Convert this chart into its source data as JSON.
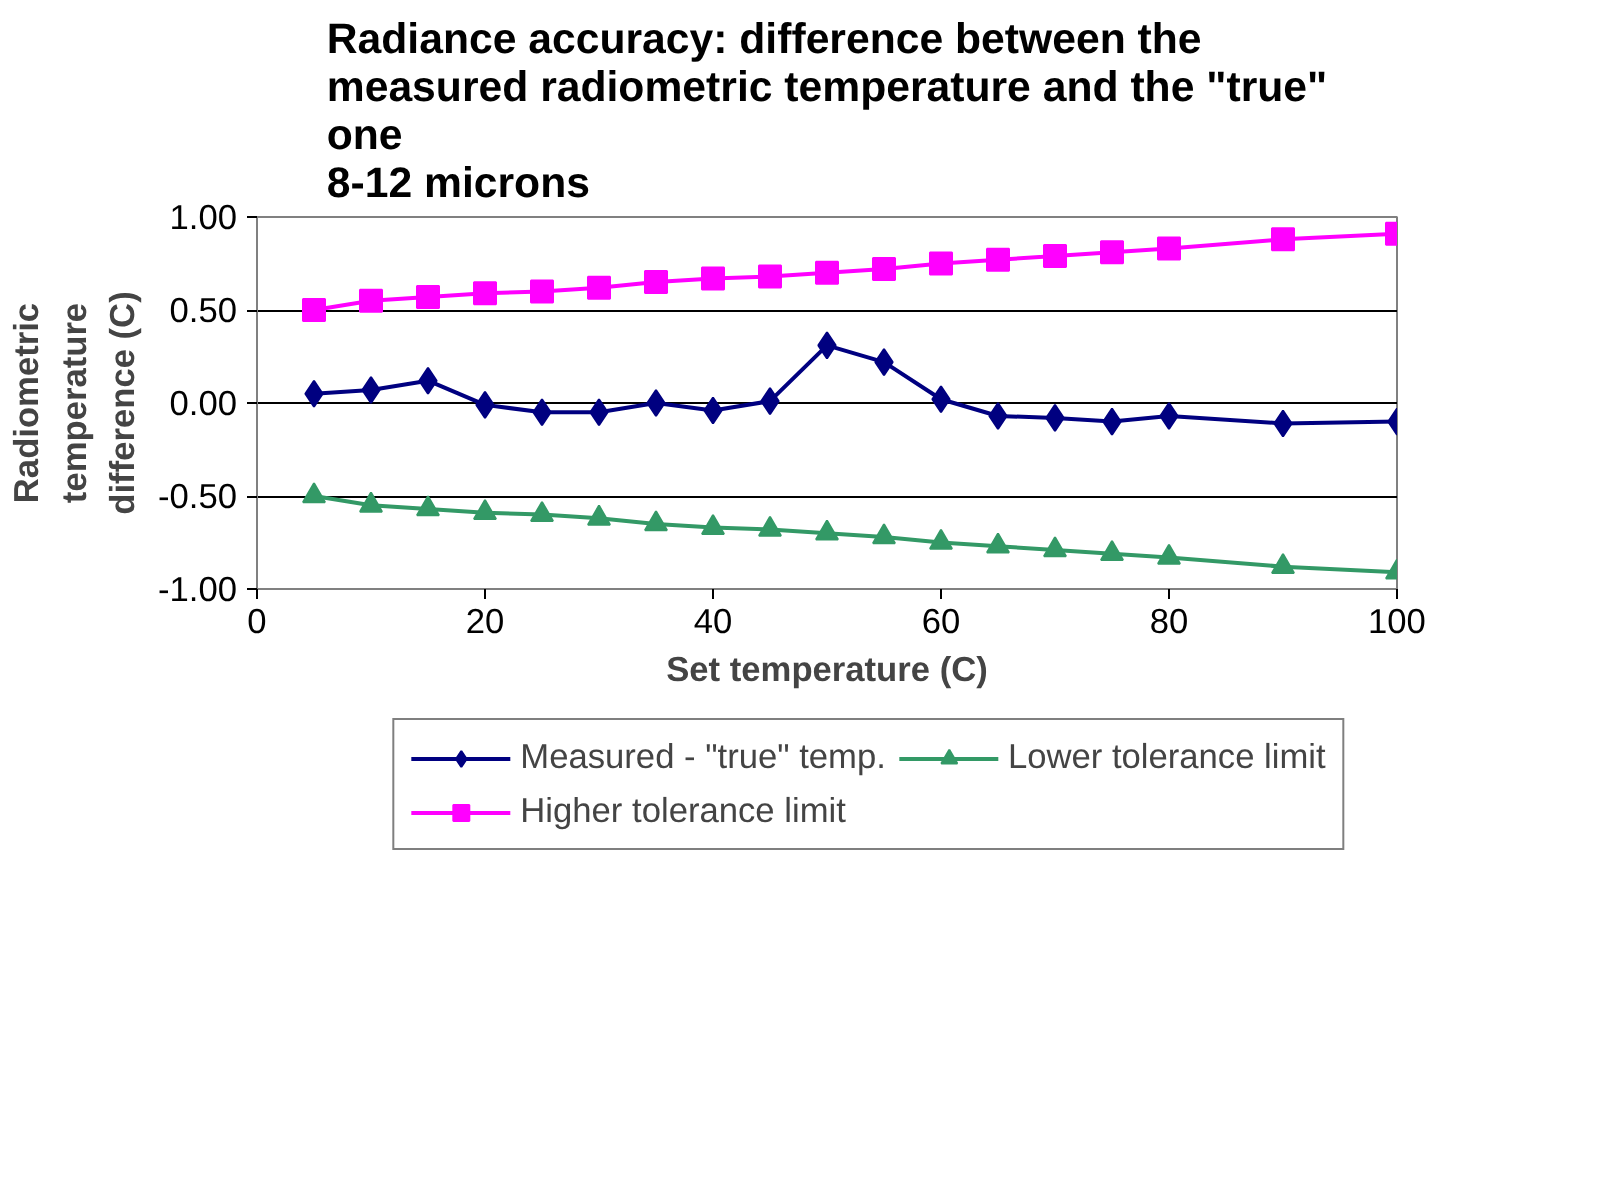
{
  "chart_data": {
    "type": "line",
    "title": "Radiance accuracy: difference between the\nmeasured radiometric temperature and the \"true\"\none\n8-12 microns",
    "xlabel": "Set temperature (C)",
    "ylabel": "Radiometric\ntemperature\ndifference (C)",
    "x": [
      5,
      10,
      15,
      20,
      25,
      30,
      35,
      40,
      45,
      50,
      55,
      60,
      65,
      70,
      75,
      80,
      90,
      100
    ],
    "xlim": [
      0,
      100
    ],
    "xticks": [
      0,
      20,
      40,
      60,
      80,
      100
    ],
    "ylim": [
      -1,
      1
    ],
    "yticks": [
      {
        "value": -1,
        "label": "-1.00"
      },
      {
        "value": -0.5,
        "label": "-0.50"
      },
      {
        "value": 0,
        "label": "0.00"
      },
      {
        "value": 0.5,
        "label": "0.50"
      },
      {
        "value": 1,
        "label": "1.00"
      }
    ],
    "grid": "y",
    "legend": "bottom",
    "series": [
      {
        "name": "Measured - \"true\" temp.",
        "color": "#000080",
        "marker": "diamond",
        "values": [
          0.05,
          0.07,
          0.12,
          -0.01,
          -0.05,
          -0.05,
          0.0,
          -0.04,
          0.01,
          0.31,
          0.22,
          0.02,
          -0.07,
          -0.08,
          -0.1,
          -0.07,
          -0.11,
          -0.1
        ]
      },
      {
        "name": "Lower tolerance limit",
        "color": "#339966",
        "marker": "triangle",
        "values": [
          -0.5,
          -0.55,
          -0.57,
          -0.59,
          -0.6,
          -0.62,
          -0.65,
          -0.67,
          -0.68,
          -0.7,
          -0.72,
          -0.75,
          -0.77,
          -0.79,
          -0.81,
          -0.83,
          -0.88,
          -0.91
        ]
      },
      {
        "name": "Higher tolerance limit",
        "color": "#ff00ff",
        "marker": "square",
        "values": [
          0.5,
          0.55,
          0.57,
          0.59,
          0.6,
          0.62,
          0.65,
          0.67,
          0.68,
          0.7,
          0.72,
          0.75,
          0.77,
          0.79,
          0.81,
          0.83,
          0.88,
          0.91
        ]
      }
    ]
  }
}
